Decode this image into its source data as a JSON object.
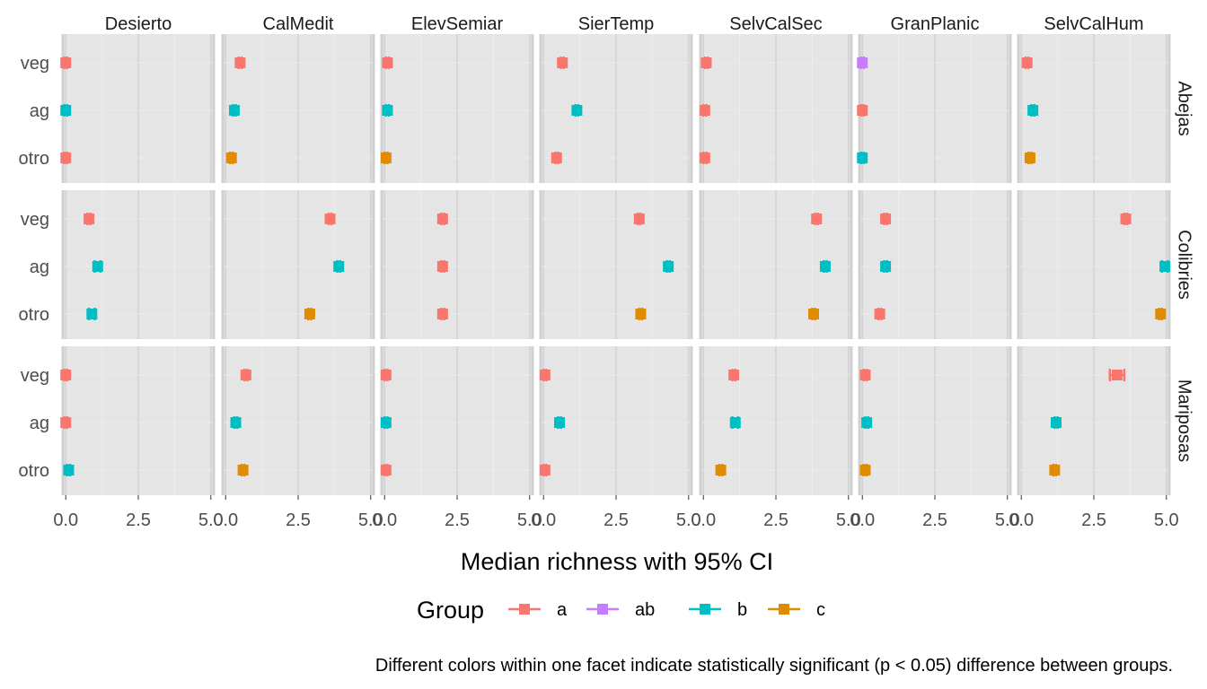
{
  "chart_data": {
    "type": "scatter",
    "xlabel": "Median richness with 95% CI",
    "xlim": [
      -0.1,
      5.1
    ],
    "xticks": [
      0,
      2.5,
      5
    ],
    "xtick_labels": [
      "0.0",
      "2.5",
      "5.0"
    ],
    "column_facets": [
      "Desierto",
      "CalMedit",
      "ElevSemiar",
      "SierTemp",
      "SelvCalSec",
      "GranPlanic",
      "SelvCalHum"
    ],
    "row_facets": [
      "Abejas",
      "Colibries",
      "Mariposas"
    ],
    "categories": [
      "veg",
      "ag",
      "otro"
    ],
    "grid": true,
    "legend": {
      "title": "Group",
      "position": "bottom",
      "items": [
        {
          "label": "a",
          "color": "#F8766D"
        },
        {
          "label": "ab",
          "color": "#C77CFF"
        },
        {
          "label": "b",
          "color": "#00BFC4"
        },
        {
          "label": "c",
          "color": "#E08B00"
        }
      ]
    },
    "caption": "Different colors within one facet indicate statistically significant (p < 0.05) difference between groups.",
    "points": [
      {
        "row": "Abejas",
        "col": "Desierto",
        "cat": "veg",
        "median": 0.0,
        "lo": -0.05,
        "hi": 0.05,
        "group": "a"
      },
      {
        "row": "Abejas",
        "col": "Desierto",
        "cat": "ag",
        "median": 0.0,
        "lo": -0.05,
        "hi": 0.05,
        "group": "b"
      },
      {
        "row": "Abejas",
        "col": "Desierto",
        "cat": "otro",
        "median": 0.0,
        "lo": -0.05,
        "hi": 0.05,
        "group": "a"
      },
      {
        "row": "Abejas",
        "col": "CalMedit",
        "cat": "veg",
        "median": 0.5,
        "lo": 0.45,
        "hi": 0.55,
        "group": "a"
      },
      {
        "row": "Abejas",
        "col": "CalMedit",
        "cat": "ag",
        "median": 0.3,
        "lo": 0.25,
        "hi": 0.35,
        "group": "b"
      },
      {
        "row": "Abejas",
        "col": "CalMedit",
        "cat": "otro",
        "median": 0.2,
        "lo": 0.15,
        "hi": 0.25,
        "group": "c"
      },
      {
        "row": "Abejas",
        "col": "ElevSemiar",
        "cat": "veg",
        "median": 0.1,
        "lo": 0.05,
        "hi": 0.15,
        "group": "a"
      },
      {
        "row": "Abejas",
        "col": "ElevSemiar",
        "cat": "ag",
        "median": 0.1,
        "lo": 0.05,
        "hi": 0.15,
        "group": "b"
      },
      {
        "row": "Abejas",
        "col": "ElevSemiar",
        "cat": "otro",
        "median": 0.05,
        "lo": 0.0,
        "hi": 0.1,
        "group": "c"
      },
      {
        "row": "Abejas",
        "col": "SierTemp",
        "cat": "veg",
        "median": 0.65,
        "lo": 0.6,
        "hi": 0.7,
        "group": "a"
      },
      {
        "row": "Abejas",
        "col": "SierTemp",
        "cat": "ag",
        "median": 1.15,
        "lo": 1.1,
        "hi": 1.2,
        "group": "b"
      },
      {
        "row": "Abejas",
        "col": "SierTemp",
        "cat": "otro",
        "median": 0.45,
        "lo": 0.4,
        "hi": 0.5,
        "group": "a"
      },
      {
        "row": "Abejas",
        "col": "SelvCalSec",
        "cat": "veg",
        "median": 0.1,
        "lo": 0.05,
        "hi": 0.15,
        "group": "a"
      },
      {
        "row": "Abejas",
        "col": "SelvCalSec",
        "cat": "ag",
        "median": 0.05,
        "lo": 0.0,
        "hi": 0.1,
        "group": "a"
      },
      {
        "row": "Abejas",
        "col": "SelvCalSec",
        "cat": "otro",
        "median": 0.05,
        "lo": 0.0,
        "hi": 0.1,
        "group": "a"
      },
      {
        "row": "Abejas",
        "col": "GranPlanic",
        "cat": "veg",
        "median": 0.0,
        "lo": -0.05,
        "hi": 0.05,
        "group": "ab"
      },
      {
        "row": "Abejas",
        "col": "GranPlanic",
        "cat": "ag",
        "median": 0.0,
        "lo": -0.05,
        "hi": 0.05,
        "group": "a"
      },
      {
        "row": "Abejas",
        "col": "GranPlanic",
        "cat": "otro",
        "median": 0.0,
        "lo": -0.05,
        "hi": 0.05,
        "group": "b"
      },
      {
        "row": "Abejas",
        "col": "SelvCalHum",
        "cat": "veg",
        "median": 0.2,
        "lo": 0.15,
        "hi": 0.25,
        "group": "a"
      },
      {
        "row": "Abejas",
        "col": "SelvCalHum",
        "cat": "ag",
        "median": 0.4,
        "lo": 0.35,
        "hi": 0.45,
        "group": "b"
      },
      {
        "row": "Abejas",
        "col": "SelvCalHum",
        "cat": "otro",
        "median": 0.3,
        "lo": 0.25,
        "hi": 0.35,
        "group": "c"
      },
      {
        "row": "Colibries",
        "col": "Desierto",
        "cat": "veg",
        "median": 0.8,
        "lo": 0.75,
        "hi": 0.85,
        "group": "a"
      },
      {
        "row": "Colibries",
        "col": "Desierto",
        "cat": "ag",
        "median": 1.1,
        "lo": 1.0,
        "hi": 1.2,
        "group": "b"
      },
      {
        "row": "Colibries",
        "col": "Desierto",
        "cat": "otro",
        "median": 0.9,
        "lo": 0.8,
        "hi": 1.0,
        "group": "b"
      },
      {
        "row": "Colibries",
        "col": "CalMedit",
        "cat": "veg",
        "median": 3.6,
        "lo": 3.55,
        "hi": 3.65,
        "group": "a"
      },
      {
        "row": "Colibries",
        "col": "CalMedit",
        "cat": "ag",
        "median": 3.9,
        "lo": 3.85,
        "hi": 3.95,
        "group": "b"
      },
      {
        "row": "Colibries",
        "col": "CalMedit",
        "cat": "otro",
        "median": 2.9,
        "lo": 2.85,
        "hi": 2.95,
        "group": "c"
      },
      {
        "row": "Colibries",
        "col": "ElevSemiar",
        "cat": "veg",
        "median": 2.0,
        "lo": 1.95,
        "hi": 2.05,
        "group": "a"
      },
      {
        "row": "Colibries",
        "col": "ElevSemiar",
        "cat": "ag",
        "median": 2.0,
        "lo": 1.95,
        "hi": 2.05,
        "group": "a"
      },
      {
        "row": "Colibries",
        "col": "ElevSemiar",
        "cat": "otro",
        "median": 2.0,
        "lo": 1.95,
        "hi": 2.05,
        "group": "a"
      },
      {
        "row": "Colibries",
        "col": "SierTemp",
        "cat": "veg",
        "median": 3.3,
        "lo": 3.25,
        "hi": 3.35,
        "group": "a"
      },
      {
        "row": "Colibries",
        "col": "SierTemp",
        "cat": "ag",
        "median": 4.3,
        "lo": 4.25,
        "hi": 4.35,
        "group": "b"
      },
      {
        "row": "Colibries",
        "col": "SierTemp",
        "cat": "otro",
        "median": 3.35,
        "lo": 3.3,
        "hi": 3.4,
        "group": "c"
      },
      {
        "row": "Colibries",
        "col": "SelvCalSec",
        "cat": "veg",
        "median": 3.9,
        "lo": 3.85,
        "hi": 3.95,
        "group": "a"
      },
      {
        "row": "Colibries",
        "col": "SelvCalSec",
        "cat": "ag",
        "median": 4.2,
        "lo": 4.15,
        "hi": 4.25,
        "group": "b"
      },
      {
        "row": "Colibries",
        "col": "SelvCalSec",
        "cat": "otro",
        "median": 3.8,
        "lo": 3.75,
        "hi": 3.85,
        "group": "c"
      },
      {
        "row": "Colibries",
        "col": "GranPlanic",
        "cat": "veg",
        "median": 0.8,
        "lo": 0.75,
        "hi": 0.85,
        "group": "a"
      },
      {
        "row": "Colibries",
        "col": "GranPlanic",
        "cat": "ag",
        "median": 0.8,
        "lo": 0.75,
        "hi": 0.85,
        "group": "b"
      },
      {
        "row": "Colibries",
        "col": "GranPlanic",
        "cat": "otro",
        "median": 0.6,
        "lo": 0.55,
        "hi": 0.65,
        "group": "a"
      },
      {
        "row": "Colibries",
        "col": "SelvCalHum",
        "cat": "veg",
        "median": 3.6,
        "lo": 3.55,
        "hi": 3.65,
        "group": "a"
      },
      {
        "row": "Colibries",
        "col": "SelvCalHum",
        "cat": "ag",
        "median": 4.95,
        "lo": 4.85,
        "hi": 5.05,
        "group": "b"
      },
      {
        "row": "Colibries",
        "col": "SelvCalHum",
        "cat": "otro",
        "median": 4.8,
        "lo": 4.75,
        "hi": 4.85,
        "group": "c"
      },
      {
        "row": "Mariposas",
        "col": "Desierto",
        "cat": "veg",
        "median": 0.0,
        "lo": -0.05,
        "hi": 0.05,
        "group": "a"
      },
      {
        "row": "Mariposas",
        "col": "Desierto",
        "cat": "ag",
        "median": 0.0,
        "lo": -0.05,
        "hi": 0.05,
        "group": "a"
      },
      {
        "row": "Mariposas",
        "col": "Desierto",
        "cat": "otro",
        "median": 0.1,
        "lo": 0.05,
        "hi": 0.15,
        "group": "b"
      },
      {
        "row": "Mariposas",
        "col": "CalMedit",
        "cat": "veg",
        "median": 0.7,
        "lo": 0.65,
        "hi": 0.75,
        "group": "a"
      },
      {
        "row": "Mariposas",
        "col": "CalMedit",
        "cat": "ag",
        "median": 0.35,
        "lo": 0.3,
        "hi": 0.4,
        "group": "b"
      },
      {
        "row": "Mariposas",
        "col": "CalMedit",
        "cat": "otro",
        "median": 0.6,
        "lo": 0.55,
        "hi": 0.65,
        "group": "c"
      },
      {
        "row": "Mariposas",
        "col": "ElevSemiar",
        "cat": "veg",
        "median": 0.05,
        "lo": 0.0,
        "hi": 0.1,
        "group": "a"
      },
      {
        "row": "Mariposas",
        "col": "ElevSemiar",
        "cat": "ag",
        "median": 0.05,
        "lo": 0.0,
        "hi": 0.1,
        "group": "b"
      },
      {
        "row": "Mariposas",
        "col": "ElevSemiar",
        "cat": "otro",
        "median": 0.05,
        "lo": 0.0,
        "hi": 0.1,
        "group": "a"
      },
      {
        "row": "Mariposas",
        "col": "SierTemp",
        "cat": "veg",
        "median": 0.05,
        "lo": 0.0,
        "hi": 0.1,
        "group": "a"
      },
      {
        "row": "Mariposas",
        "col": "SierTemp",
        "cat": "ag",
        "median": 0.55,
        "lo": 0.5,
        "hi": 0.6,
        "group": "b"
      },
      {
        "row": "Mariposas",
        "col": "SierTemp",
        "cat": "otro",
        "median": 0.05,
        "lo": 0.0,
        "hi": 0.1,
        "group": "a"
      },
      {
        "row": "Mariposas",
        "col": "SelvCalSec",
        "cat": "veg",
        "median": 1.05,
        "lo": 1.0,
        "hi": 1.1,
        "group": "a"
      },
      {
        "row": "Mariposas",
        "col": "SelvCalSec",
        "cat": "ag",
        "median": 1.1,
        "lo": 1.0,
        "hi": 1.2,
        "group": "b"
      },
      {
        "row": "Mariposas",
        "col": "SelvCalSec",
        "cat": "otro",
        "median": 0.6,
        "lo": 0.55,
        "hi": 0.65,
        "group": "c"
      },
      {
        "row": "Mariposas",
        "col": "GranPlanic",
        "cat": "veg",
        "median": 0.1,
        "lo": 0.05,
        "hi": 0.15,
        "group": "a"
      },
      {
        "row": "Mariposas",
        "col": "GranPlanic",
        "cat": "ag",
        "median": 0.15,
        "lo": 0.1,
        "hi": 0.2,
        "group": "b"
      },
      {
        "row": "Mariposas",
        "col": "GranPlanic",
        "cat": "otro",
        "median": 0.1,
        "lo": 0.05,
        "hi": 0.15,
        "group": "c"
      },
      {
        "row": "Mariposas",
        "col": "SelvCalHum",
        "cat": "veg",
        "median": 3.3,
        "lo": 3.05,
        "hi": 3.55,
        "group": "a"
      },
      {
        "row": "Mariposas",
        "col": "SelvCalHum",
        "cat": "ag",
        "median": 1.2,
        "lo": 1.15,
        "hi": 1.25,
        "group": "b"
      },
      {
        "row": "Mariposas",
        "col": "SelvCalHum",
        "cat": "otro",
        "median": 1.15,
        "lo": 1.1,
        "hi": 1.2,
        "group": "c"
      }
    ]
  }
}
